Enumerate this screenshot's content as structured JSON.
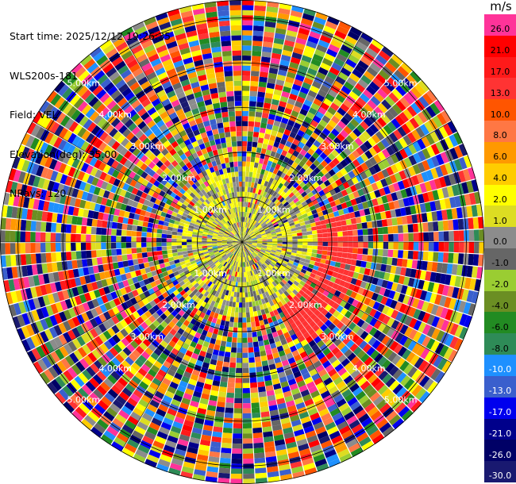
{
  "header": {
    "start_time": "Start time: 2025/12/12 19:26:35",
    "instrument": "WLS200s-181",
    "field": "Field: VEL",
    "elevation": "Elevation(deg): 35.00",
    "nrays": "NRays: 120"
  },
  "colorbar": {
    "unit": "m/s",
    "bins": [
      {
        "label": "26.0",
        "color": "#ff3399"
      },
      {
        "label": "21.0",
        "color": "#ff0000"
      },
      {
        "label": "17.0",
        "color": "#ff1a1a"
      },
      {
        "label": "13.0",
        "color": "#ff3333"
      },
      {
        "label": "10.0",
        "color": "#ff5500"
      },
      {
        "label": "8.0",
        "color": "#ff7744"
      },
      {
        "label": "6.0",
        "color": "#ff9900"
      },
      {
        "label": "4.0",
        "color": "#ffcc00"
      },
      {
        "label": "2.0",
        "color": "#ffff00"
      },
      {
        "label": "1.0",
        "color": "#dddd22"
      },
      {
        "label": "0.0",
        "color": "#8c8c8c"
      },
      {
        "label": "-1.0",
        "color": "#666666"
      },
      {
        "label": "-2.0",
        "color": "#9acd32"
      },
      {
        "label": "-4.0",
        "color": "#6b8e23"
      },
      {
        "label": "-6.0",
        "color": "#228b22"
      },
      {
        "label": "-8.0",
        "color": "#2e8b57"
      },
      {
        "label": "-10.0",
        "color": "#1e90ff"
      },
      {
        "label": "-13.0",
        "color": "#3a5fcd"
      },
      {
        "label": "-17.0",
        "color": "#0000ee"
      },
      {
        "label": "-21.0",
        "color": "#00008b"
      },
      {
        "label": "-26.0",
        "color": "#000066"
      },
      {
        "label": "-30.0",
        "color": "#191970"
      }
    ]
  },
  "chart_data": {
    "type": "heatmap",
    "projection": "polar PPI scan",
    "field": "VEL",
    "elevation_deg": 35.0,
    "n_rays": 120,
    "range_rings_km": [
      1.0,
      2.0,
      3.0,
      4.0,
      5.0
    ],
    "ring_labels": [
      "1.00km",
      "2.00km",
      "3.00km",
      "4.00km",
      "5.00km"
    ],
    "max_range_km": 5.4,
    "velocity_range_ms": [
      -30,
      30
    ],
    "near_field_pattern": "yellow/green/gray near zero at 0-2 km; red band (approx +13 m/s) on the east side between 1.3-2.6 km"
  }
}
